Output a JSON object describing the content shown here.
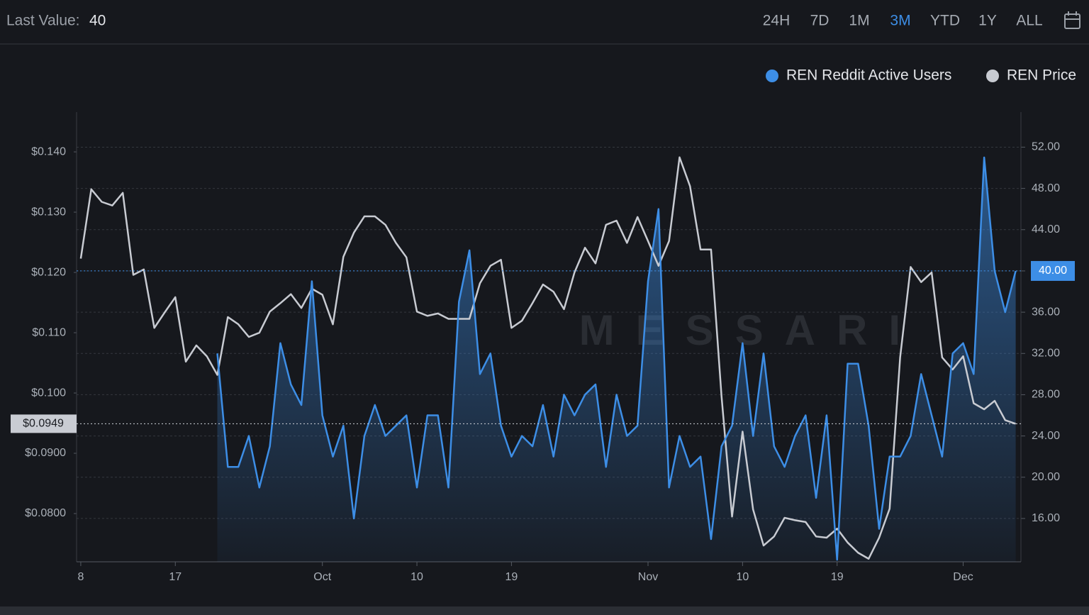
{
  "header": {
    "last_value_label": "Last Value:",
    "last_value": 40,
    "ranges": [
      {
        "label": "24H"
      },
      {
        "label": "7D"
      },
      {
        "label": "1M"
      },
      {
        "label": "3M",
        "selected": true
      },
      {
        "label": "YTD"
      },
      {
        "label": "1Y"
      },
      {
        "label": "ALL"
      }
    ]
  },
  "chart_data": {
    "type": "line",
    "watermark": "MESSARI",
    "legend": "top-right",
    "grid": true,
    "x": [
      0,
      1,
      2,
      3,
      4,
      5,
      6,
      7,
      8,
      9,
      10,
      11,
      12,
      13,
      14,
      15,
      16,
      17,
      18,
      19,
      20,
      21,
      22,
      23,
      24,
      25,
      26,
      27,
      28,
      29,
      30,
      31,
      32,
      33,
      34,
      35,
      36,
      37,
      38,
      39,
      40,
      41,
      42,
      43,
      44,
      45,
      46,
      47,
      48,
      49,
      50,
      51,
      52,
      53,
      54,
      55,
      56,
      57,
      58,
      59,
      60,
      61,
      62,
      63,
      64,
      65,
      66,
      67,
      68,
      69,
      70,
      71,
      72,
      73,
      74,
      75,
      76,
      77,
      78,
      79,
      80,
      81,
      82,
      83,
      84,
      85,
      86,
      87,
      88,
      89
    ],
    "xlim": [
      -0.4,
      89.5
    ],
    "xticks": [
      {
        "value": 0,
        "label": "8"
      },
      {
        "value": 9,
        "label": "17"
      },
      {
        "value": 23,
        "label": "Oct"
      },
      {
        "value": 32,
        "label": "10"
      },
      {
        "value": 41,
        "label": "19"
      },
      {
        "value": 54,
        "label": "Nov"
      },
      {
        "value": 63,
        "label": "10"
      },
      {
        "value": 72,
        "label": "19"
      },
      {
        "value": 84,
        "label": "Dec"
      }
    ],
    "ylim": [
      0.072,
      0.1466
    ],
    "yticks": [
      {
        "value": 0.14,
        "label": "$0.140"
      },
      {
        "value": 0.13,
        "label": "$0.130"
      },
      {
        "value": 0.12,
        "label": "$0.120"
      },
      {
        "value": 0.11,
        "label": "$0.110"
      },
      {
        "value": 0.1,
        "label": "$0.100"
      },
      {
        "value": 0.09,
        "label": "$0.0900"
      },
      {
        "value": 0.08,
        "label": "$0.0800"
      }
    ],
    "y2lim": [
      11.8,
      55.4
    ],
    "y2ticks": [
      {
        "value": 52,
        "label": "52.00"
      },
      {
        "value": 48,
        "label": "48.00"
      },
      {
        "value": 44,
        "label": "44.00"
      },
      {
        "value": 40,
        "label": "40.00"
      },
      {
        "value": 36,
        "label": "36.00"
      },
      {
        "value": 32,
        "label": "32.00"
      },
      {
        "value": 28,
        "label": "28.00"
      },
      {
        "value": 24,
        "label": "24.00"
      },
      {
        "value": 20,
        "label": "20.00"
      },
      {
        "value": 16,
        "label": "16.00"
      }
    ],
    "price_marker": {
      "value": 0.0949,
      "label": "$0.0949"
    },
    "users_marker": {
      "value": 40,
      "label": "40.00"
    },
    "series": [
      {
        "name": "REN Price",
        "color": "#c8cbd2",
        "axis": "y",
        "values": [
          0.1223,
          0.1338,
          0.1317,
          0.1311,
          0.1332,
          0.1196,
          0.1205,
          0.1108,
          0.1134,
          0.1159,
          0.1052,
          0.1079,
          0.1061,
          0.103,
          0.1126,
          0.1114,
          0.1093,
          0.11,
          0.1135,
          0.1149,
          0.1164,
          0.1141,
          0.1173,
          0.1163,
          0.1114,
          0.1226,
          0.1266,
          0.1293,
          0.1293,
          0.1279,
          0.1249,
          0.1225,
          0.1135,
          0.1128,
          0.1132,
          0.1123,
          0.1123,
          0.1123,
          0.1182,
          0.1211,
          0.1221,
          0.1108,
          0.112,
          0.1149,
          0.118,
          0.1168,
          0.1139,
          0.12,
          0.1241,
          0.1215,
          0.1279,
          0.1286,
          0.1249,
          0.1292,
          0.1252,
          0.1211,
          0.1252,
          0.1391,
          0.1343,
          0.1238,
          0.1238,
          0.0994,
          0.0795,
          0.0936,
          0.0807,
          0.0747,
          0.0762,
          0.0793,
          0.0789,
          0.0786,
          0.0762,
          0.076,
          0.0775,
          0.0752,
          0.0735,
          0.0725,
          0.076,
          0.0808,
          0.1059,
          0.1209,
          0.1184,
          0.12,
          0.1059,
          0.1039,
          0.1061,
          0.0983,
          0.0973,
          0.0987,
          0.0955,
          0.0949
        ]
      },
      {
        "name": "REN Reddit Active Users",
        "color": "#3d8ee6",
        "axis": "y2",
        "values": [
          null,
          null,
          null,
          null,
          null,
          null,
          null,
          null,
          null,
          null,
          null,
          null,
          null,
          32,
          21,
          21,
          24,
          19,
          23,
          33,
          29,
          27,
          39,
          26,
          22,
          25,
          16,
          24,
          27,
          24,
          25,
          26,
          19,
          26,
          26,
          19,
          37,
          42,
          30,
          32,
          25,
          22,
          24,
          23,
          27,
          22,
          28,
          26,
          28,
          29,
          21,
          28,
          24,
          25,
          39,
          46,
          19,
          24,
          21,
          22,
          14,
          23,
          25,
          33,
          24,
          32,
          23,
          21,
          24,
          26,
          18,
          26,
          12,
          31,
          31,
          25,
          15,
          22,
          22,
          24,
          30,
          26,
          22,
          32,
          33,
          30,
          51,
          40,
          36,
          40
        ]
      }
    ]
  }
}
